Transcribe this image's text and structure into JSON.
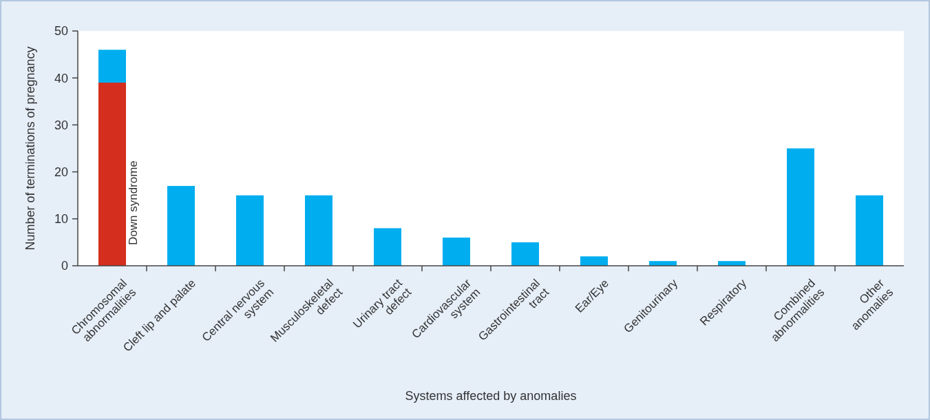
{
  "chart_data": {
    "type": "bar",
    "stacked": true,
    "xlabel": "Systems affected by anomalies",
    "ylabel": "Number of terminations of pregnancy",
    "categories": [
      "Chromosomal\nabnormalities",
      "Cleft lip and palate",
      "Central nervous\nsystem",
      "Musculoskeletal\ndefect",
      "Urinary tract\ndefect",
      "Cardiovascular\nsystem",
      "Gastrointestinal\ntract",
      "Ear/Eye",
      "Genitourinary",
      "Respiratory",
      "Combined\nabnormalities",
      "Other\nanomalies"
    ],
    "series": [
      {
        "name": "Down syndrome",
        "color": "#d42e1e",
        "values": [
          39,
          null,
          null,
          null,
          null,
          null,
          null,
          null,
          null,
          null,
          null,
          null
        ]
      },
      {
        "color": "#00aeef",
        "values": [
          7,
          17,
          15,
          15,
          8,
          6,
          5,
          2,
          1,
          1,
          25,
          15
        ]
      }
    ],
    "ylim": [
      0,
      50
    ],
    "yticks": [
      0,
      10,
      20,
      30,
      40,
      50
    ],
    "grid": false
  }
}
